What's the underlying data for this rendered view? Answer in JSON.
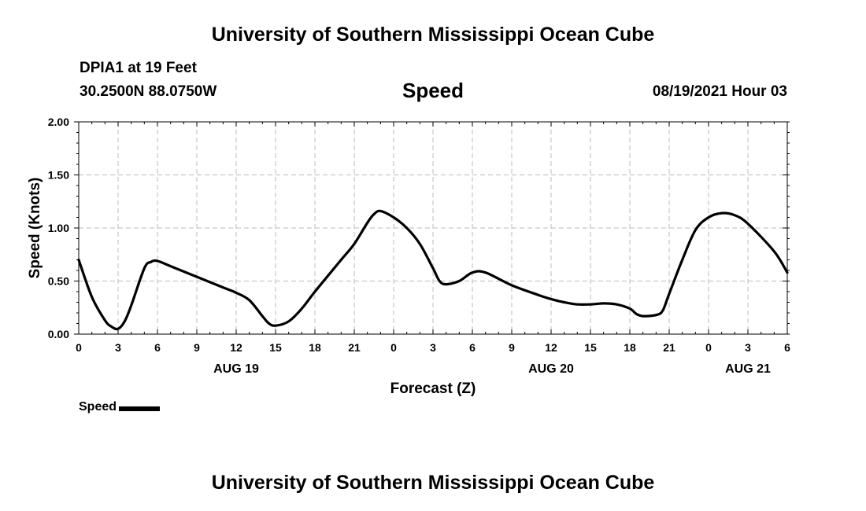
{
  "header": {
    "title": "University of Southern Mississippi Ocean Cube",
    "station": "DPIA1 at 19 Feet",
    "coordinates": "30.2500N  88.0750W",
    "datetime": "08/19/2021 Hour 03"
  },
  "footer": {
    "title": "University of Southern Mississippi Ocean Cube"
  },
  "legend": {
    "label": "Speed"
  },
  "colors": {
    "line": "#000000",
    "grid": "#bbbbbb",
    "background": "#ffffff"
  },
  "chart_data": {
    "type": "line",
    "title": "Speed",
    "xlabel": "Forecast (Z)",
    "ylabel": "Speed (Knots)",
    "xlim": [
      0,
      54
    ],
    "ylim": [
      0,
      2.0
    ],
    "grid": true,
    "legend_position": "bottom-left",
    "x_ticks": [
      {
        "hour": 0,
        "label": "0"
      },
      {
        "hour": 3,
        "label": "3"
      },
      {
        "hour": 6,
        "label": "6"
      },
      {
        "hour": 9,
        "label": "9"
      },
      {
        "hour": 12,
        "label": "12"
      },
      {
        "hour": 15,
        "label": "15"
      },
      {
        "hour": 18,
        "label": "18"
      },
      {
        "hour": 21,
        "label": "21"
      },
      {
        "hour": 24,
        "label": "0"
      },
      {
        "hour": 27,
        "label": "3"
      },
      {
        "hour": 30,
        "label": "6"
      },
      {
        "hour": 33,
        "label": "9"
      },
      {
        "hour": 36,
        "label": "12"
      },
      {
        "hour": 39,
        "label": "15"
      },
      {
        "hour": 42,
        "label": "18"
      },
      {
        "hour": 45,
        "label": "21"
      },
      {
        "hour": 48,
        "label": "0"
      },
      {
        "hour": 51,
        "label": "3"
      },
      {
        "hour": 54,
        "label": "6"
      }
    ],
    "y_ticks": [
      {
        "value": 0,
        "label": "0.00"
      },
      {
        "value": 0.5,
        "label": "0.50"
      },
      {
        "value": 1.0,
        "label": "1.00"
      },
      {
        "value": 1.5,
        "label": "1.50"
      },
      {
        "value": 2.0,
        "label": "2.00"
      }
    ],
    "date_labels": [
      {
        "hour": 12,
        "label": "AUG 19"
      },
      {
        "hour": 36,
        "label": "AUG 20"
      },
      {
        "hour": 51,
        "label": "AUG 21"
      }
    ],
    "series": [
      {
        "name": "Speed",
        "x": [
          0,
          1,
          2,
          2.5,
          3,
          3.5,
          4,
          5,
          5.5,
          6,
          7,
          9,
          11,
          12,
          13,
          14,
          14.5,
          15,
          16,
          17,
          18,
          20,
          21,
          22,
          22.5,
          23,
          24,
          25,
          26,
          27,
          27.5,
          28,
          29,
          30,
          31,
          33,
          35,
          36,
          37,
          38,
          39,
          40,
          41,
          42,
          42.5,
          43,
          44,
          44.5,
          45,
          46,
          47,
          48,
          49,
          50,
          51,
          53,
          54
        ],
        "values": [
          0.7,
          0.35,
          0.13,
          0.07,
          0.05,
          0.12,
          0.27,
          0.62,
          0.68,
          0.69,
          0.64,
          0.54,
          0.44,
          0.39,
          0.32,
          0.17,
          0.1,
          0.08,
          0.12,
          0.24,
          0.4,
          0.7,
          0.85,
          1.05,
          1.13,
          1.16,
          1.1,
          1.0,
          0.85,
          0.62,
          0.5,
          0.47,
          0.5,
          0.58,
          0.58,
          0.46,
          0.37,
          0.33,
          0.3,
          0.28,
          0.28,
          0.29,
          0.28,
          0.24,
          0.19,
          0.17,
          0.18,
          0.22,
          0.38,
          0.7,
          0.98,
          1.1,
          1.14,
          1.12,
          1.04,
          0.78,
          0.58
        ]
      }
    ]
  }
}
